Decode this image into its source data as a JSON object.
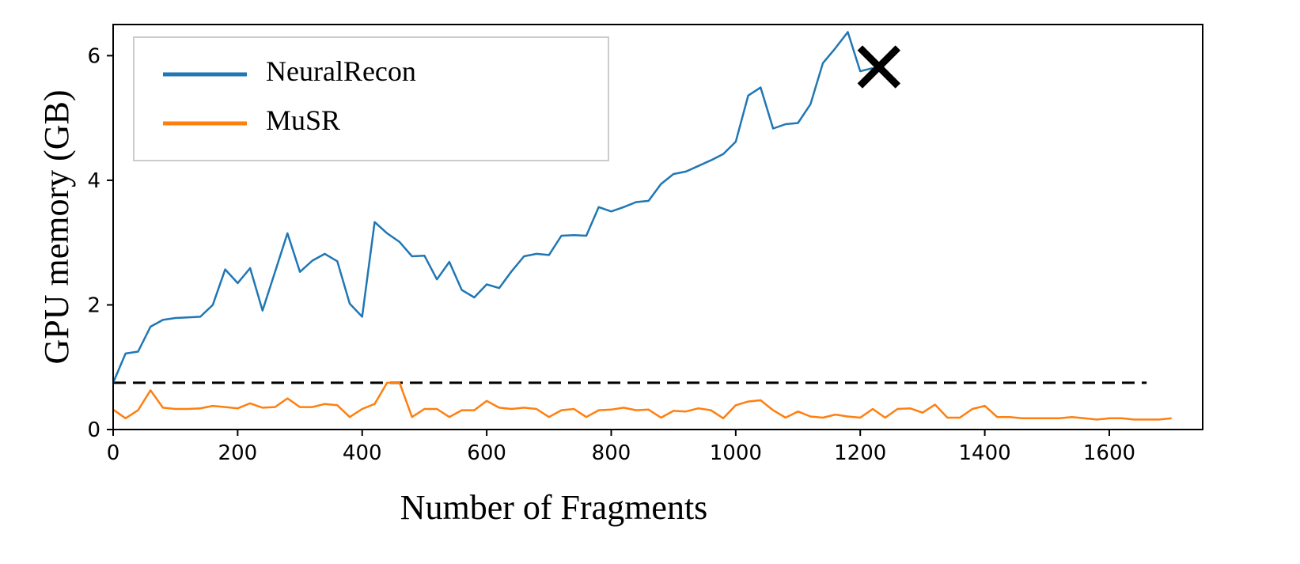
{
  "chart_data": {
    "type": "line",
    "xlabel": "Number of Fragments",
    "ylabel": "GPU memory (GB)",
    "xlim": [
      0,
      1750
    ],
    "ylim": [
      0,
      6.5
    ],
    "xticks": [
      0,
      200,
      400,
      600,
      800,
      1000,
      1200,
      1400,
      1600
    ],
    "xtick_labels": [
      "0",
      "200",
      "400",
      "600",
      "800",
      "1000",
      "1200",
      "1400",
      "1600"
    ],
    "yticks": [
      0,
      2,
      4,
      6
    ],
    "ytick_labels": [
      "0",
      "2",
      "4",
      "6"
    ],
    "grid": false,
    "legend_position": "top-left",
    "series": [
      {
        "name": "NeuralRecon",
        "color": "#1f77b4",
        "x": [
          0,
          20,
          40,
          60,
          80,
          100,
          120,
          140,
          160,
          180,
          200,
          220,
          240,
          260,
          280,
          300,
          320,
          340,
          360,
          380,
          400,
          420,
          440,
          460,
          480,
          500,
          520,
          540,
          560,
          580,
          600,
          620,
          640,
          660,
          680,
          700,
          720,
          740,
          760,
          780,
          800,
          820,
          840,
          860,
          880,
          900,
          920,
          940,
          960,
          980,
          1000,
          1020,
          1040,
          1060,
          1080,
          1100,
          1120,
          1140,
          1160,
          1180,
          1200,
          1220
        ],
        "y": [
          0.75,
          1.22,
          1.25,
          1.65,
          1.76,
          1.79,
          1.8,
          1.81,
          2.0,
          2.57,
          2.35,
          2.59,
          1.91,
          2.53,
          3.15,
          2.53,
          2.71,
          2.82,
          2.7,
          2.02,
          1.81,
          3.33,
          3.15,
          3.01,
          2.78,
          2.79,
          2.41,
          2.69,
          2.24,
          2.12,
          2.33,
          2.27,
          2.54,
          2.78,
          2.82,
          2.8,
          3.11,
          3.12,
          3.11,
          3.57,
          3.5,
          3.57,
          3.65,
          3.67,
          3.94,
          4.1,
          4.14,
          4.23,
          4.32,
          4.42,
          4.62,
          5.36,
          5.49,
          4.83,
          4.9,
          4.92,
          5.22,
          5.88,
          6.12,
          6.38,
          5.75,
          5.8
        ]
      },
      {
        "name": "MuSR",
        "color": "#ff7f0e",
        "x": [
          0,
          20,
          40,
          60,
          80,
          100,
          120,
          140,
          160,
          180,
          200,
          220,
          240,
          260,
          280,
          300,
          320,
          340,
          360,
          380,
          400,
          420,
          440,
          460,
          480,
          500,
          520,
          540,
          560,
          580,
          600,
          620,
          640,
          660,
          680,
          700,
          720,
          740,
          760,
          780,
          800,
          820,
          840,
          860,
          880,
          900,
          920,
          940,
          960,
          980,
          1000,
          1020,
          1040,
          1060,
          1080,
          1100,
          1120,
          1140,
          1160,
          1180,
          1200,
          1220,
          1240,
          1260,
          1280,
          1300,
          1320,
          1340,
          1360,
          1380,
          1400,
          1420,
          1440,
          1460,
          1480,
          1500,
          1520,
          1540,
          1560,
          1580,
          1600,
          1620,
          1640,
          1660,
          1680,
          1700
        ],
        "y": [
          0.32,
          0.18,
          0.31,
          0.63,
          0.35,
          0.33,
          0.33,
          0.34,
          0.38,
          0.36,
          0.34,
          0.42,
          0.35,
          0.36,
          0.5,
          0.36,
          0.36,
          0.41,
          0.39,
          0.2,
          0.33,
          0.41,
          0.75,
          0.75,
          0.2,
          0.33,
          0.33,
          0.2,
          0.31,
          0.31,
          0.46,
          0.35,
          0.33,
          0.35,
          0.33,
          0.2,
          0.31,
          0.33,
          0.2,
          0.31,
          0.32,
          0.35,
          0.31,
          0.32,
          0.19,
          0.3,
          0.29,
          0.34,
          0.31,
          0.18,
          0.39,
          0.45,
          0.47,
          0.31,
          0.19,
          0.29,
          0.21,
          0.19,
          0.24,
          0.21,
          0.19,
          0.33,
          0.19,
          0.33,
          0.34,
          0.27,
          0.4,
          0.19,
          0.19,
          0.33,
          0.38,
          0.2,
          0.2,
          0.18,
          0.18,
          0.18,
          0.18,
          0.2,
          0.18,
          0.16,
          0.18,
          0.18,
          0.16,
          0.16,
          0.16,
          0.18
        ]
      }
    ],
    "reference_line": {
      "y": 0.75,
      "x_range": [
        0,
        1660
      ],
      "style": "dashed",
      "color": "#000000"
    },
    "marker": {
      "x": 1230,
      "y": 5.82,
      "symbol": "x",
      "color": "#000000"
    }
  }
}
